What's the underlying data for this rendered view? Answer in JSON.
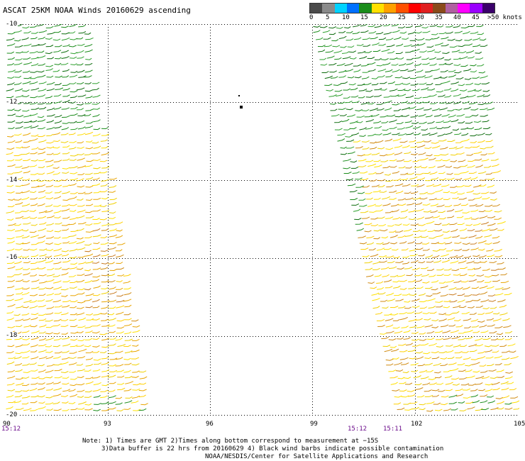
{
  "title": "ASCAT 25KM NOAA Winds 20160629 ascending",
  "legend": {
    "ticks": [
      "0",
      "5",
      "10",
      "15",
      "20",
      "25",
      "30",
      "35",
      "40",
      "45",
      ">50 knots"
    ],
    "colors": [
      "#4a4a4a",
      "#8a8a8a",
      "#00d2ff",
      "#0070ff",
      "#1a8c1a",
      "#ffe000",
      "#ffa000",
      "#ff5000",
      "#ff0000",
      "#e02020",
      "#8a4a1a",
      "#b060a0",
      "#ff00ff",
      "#9a00ff",
      "#3a006a"
    ]
  },
  "axes": {
    "lat_labels": [
      "-10",
      "-12",
      "-14",
      "-16",
      "-18",
      "-20"
    ],
    "lon_labels": [
      "90",
      "93",
      "96",
      "99",
      "102",
      "105"
    ]
  },
  "times": [
    "15:12",
    "15:12",
    "15:11"
  ],
  "notes": {
    "line1": "Note: 1) Times are GMT 2)Times along bottom correspond to measurement at −15S",
    "line2": "3)Data buffer is 22 hrs from 20160629 4) Black wind barbs indicate possible contamination",
    "line3": "NOAA/NESDIS/Center for Satellite Applications and Research"
  }
}
